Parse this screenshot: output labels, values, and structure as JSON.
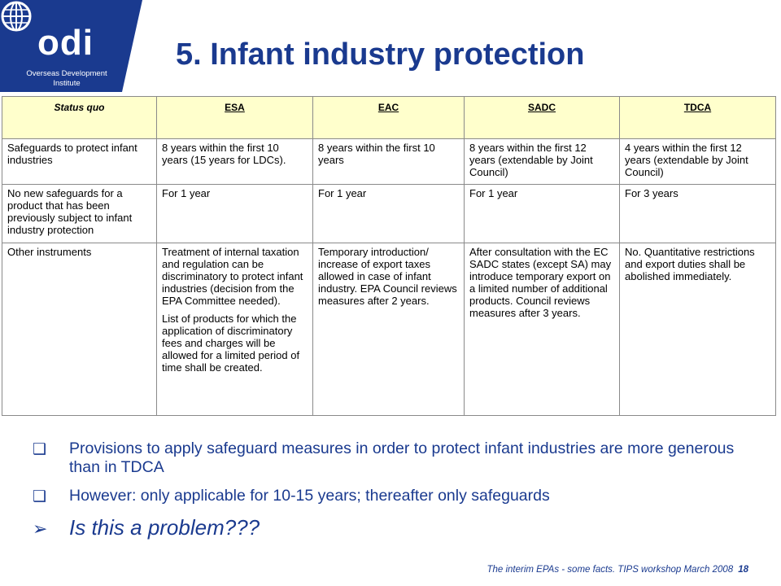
{
  "logo": {
    "word": "odi",
    "line1": "Overseas Development",
    "line2": "Institute",
    "icon": "globe-icon",
    "color": "#1a3a8f"
  },
  "title": "5. Infant industry protection",
  "table": {
    "headers": [
      "Status quo",
      "ESA",
      "EAC",
      "SADC",
      "TDCA"
    ],
    "rows": [
      {
        "label": "Safeguards to protect infant industries",
        "cells": [
          [
            "8 years within the first 10 years (15 years for LDCs)."
          ],
          [
            "8 years within the first 10 years"
          ],
          [
            "8 years within the first 12 years (extendable by Joint Council)"
          ],
          [
            "4 years within the first 12 years (extendable by Joint Council)"
          ]
        ]
      },
      {
        "label": "No new safeguards for a product that has been previously subject to infant industry protection",
        "cells": [
          [
            "For 1 year"
          ],
          [
            "For 1 year"
          ],
          [
            "For 1 year"
          ],
          [
            "For 3 years"
          ]
        ]
      },
      {
        "label": "Other instruments",
        "cells": [
          [
            "Treatment of internal taxation and regulation can be discriminatory to protect infant industries (decision from the EPA Committee needed).",
            "List of products for which the application of discriminatory fees and charges will be allowed for a limited period of time shall be created."
          ],
          [
            "Temporary introduction/ increase of export taxes allowed in case of infant industry. EPA Council reviews measures after 2 years."
          ],
          [
            "After consultation with the EC SADC states (except SA) may introduce temporary export on a limited number of additional products. Council reviews measures after 3 years."
          ],
          [
            "No. Quantitative restrictions and export duties shall be abolished immediately."
          ]
        ]
      }
    ]
  },
  "bullets": [
    {
      "marker": "❑",
      "text": "Provisions to apply safeguard measures in order to protect infant industries are more generous than in TDCA"
    },
    {
      "marker": "❑",
      "text": "However: only applicable for 10-15 years; thereafter only safeguards"
    },
    {
      "marker": "➢",
      "text": "Is this a problem???"
    }
  ],
  "footer": {
    "text": "The interim EPAs - some facts. TIPS workshop March 2008",
    "page": "18"
  }
}
